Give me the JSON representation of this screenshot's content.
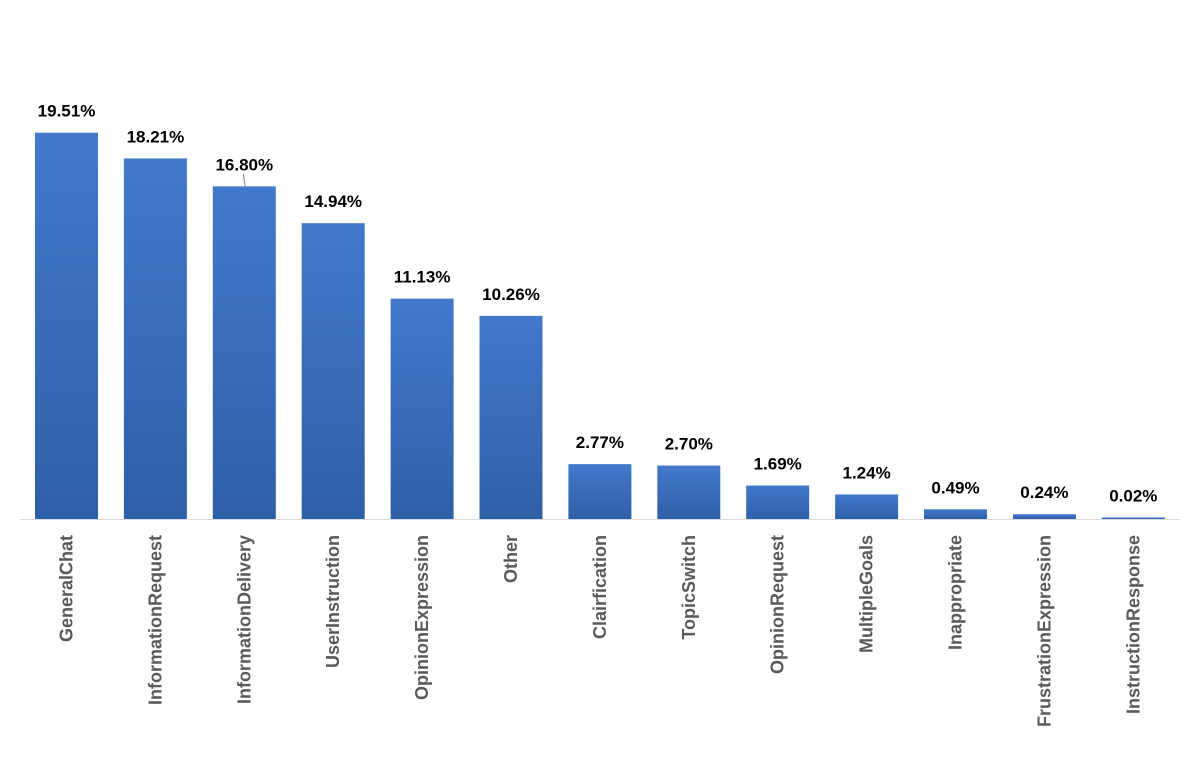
{
  "chart_data": {
    "type": "bar",
    "title": "",
    "xlabel": "",
    "ylabel": "",
    "categories": [
      "GeneralChat",
      "InformationRequest",
      "InformationDelivery",
      "UserInstruction",
      "OpinionExpression",
      "Other",
      "Clairfication",
      "TopicSwitch",
      "OpinionRequest",
      "MultipleGoals",
      "Inappropriate",
      "FrustrationExpression",
      "InstructionResponse"
    ],
    "values": [
      19.51,
      18.21,
      16.8,
      14.94,
      11.13,
      10.26,
      2.77,
      2.7,
      1.69,
      1.24,
      0.49,
      0.24,
      0.02
    ],
    "value_labels": [
      "19.51%",
      "18.21%",
      "16.80%",
      "14.94%",
      "11.13%",
      "10.26%",
      "2.77%",
      "2.70%",
      "1.69%",
      "1.24%",
      "0.49%",
      "0.24%",
      "0.02%"
    ],
    "ylim": [
      0,
      20
    ],
    "grid": false,
    "legend": "none",
    "colors": {
      "bar_top": "#4279CB",
      "bar_bottom": "#2F5FA8",
      "baseline": "#D9D9D9",
      "label": "#000000",
      "tick": "#595959"
    }
  }
}
